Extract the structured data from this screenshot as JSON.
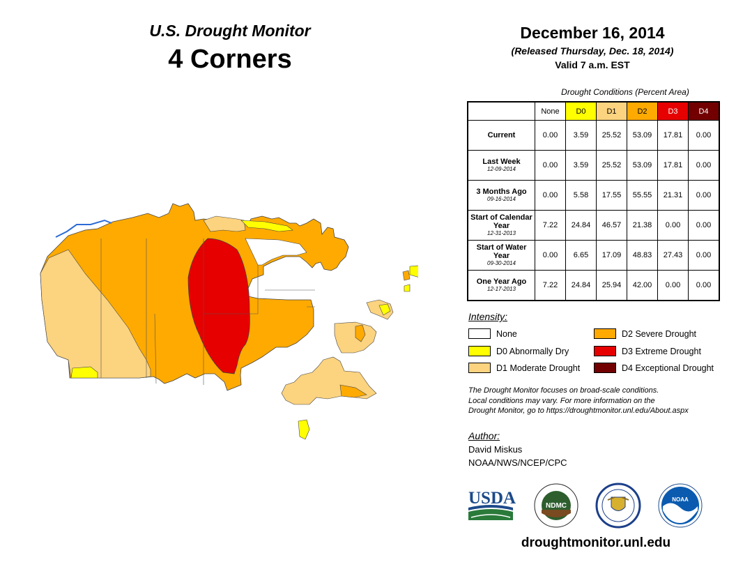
{
  "header": {
    "title_line1": "U.S. Drought Monitor",
    "title_line2": "4 Corners"
  },
  "date": {
    "main": "December 16, 2014",
    "released": "(Released Thursday, Dec. 18, 2014)",
    "valid": "Valid 7 a.m. EST"
  },
  "table": {
    "caption": "Drought Conditions (Percent Area)",
    "headers": [
      "None",
      "D0",
      "D1",
      "D2",
      "D3",
      "D4"
    ],
    "rows": [
      {
        "label": "Current",
        "sub": "",
        "values": [
          "0.00",
          "3.59",
          "25.52",
          "53.09",
          "17.81",
          "0.00"
        ]
      },
      {
        "label": "Last Week",
        "sub": "12-09-2014",
        "values": [
          "0.00",
          "3.59",
          "25.52",
          "53.09",
          "17.81",
          "0.00"
        ]
      },
      {
        "label": "3 Months Ago",
        "sub": "09-16-2014",
        "values": [
          "0.00",
          "5.58",
          "17.55",
          "55.55",
          "21.31",
          "0.00"
        ]
      },
      {
        "label": "Start of Calendar Year",
        "sub": "12-31-2013",
        "values": [
          "7.22",
          "24.84",
          "46.57",
          "21.38",
          "0.00",
          "0.00"
        ]
      },
      {
        "label": "Start of Water Year",
        "sub": "09-30-2014",
        "values": [
          "0.00",
          "6.65",
          "17.09",
          "48.83",
          "27.43",
          "0.00"
        ]
      },
      {
        "label": "One Year Ago",
        "sub": "12-17-2013",
        "values": [
          "7.22",
          "24.84",
          "25.94",
          "42.00",
          "0.00",
          "0.00"
        ]
      }
    ]
  },
  "legend": {
    "title": "Intensity:",
    "items": [
      {
        "label": "None",
        "color": "#ffffff"
      },
      {
        "label": "D0 Abnormally Dry",
        "color": "#ffff00"
      },
      {
        "label": "D1 Moderate Drought",
        "color": "#fcd37f"
      },
      {
        "label": "D2 Severe Drought",
        "color": "#ffaa00"
      },
      {
        "label": "D3 Extreme Drought",
        "color": "#e60000"
      },
      {
        "label": "D4 Exceptional Drought",
        "color": "#730000"
      }
    ]
  },
  "note": {
    "line1": "The Drought Monitor focuses on broad-scale conditions.",
    "line2": "Local conditions may vary. For more information on the",
    "line3": "Drought Monitor, go to https://droughtmonitor.unl.edu/About.aspx"
  },
  "author": {
    "title": "Author:",
    "name": "David Miskus",
    "org": "NOAA/NWS/NCEP/CPC"
  },
  "logos": {
    "usda": "USDA",
    "ndmc": "NDMC",
    "noaa": "NOAA"
  },
  "footer": {
    "website": "droughtmonitor.unl.edu"
  }
}
